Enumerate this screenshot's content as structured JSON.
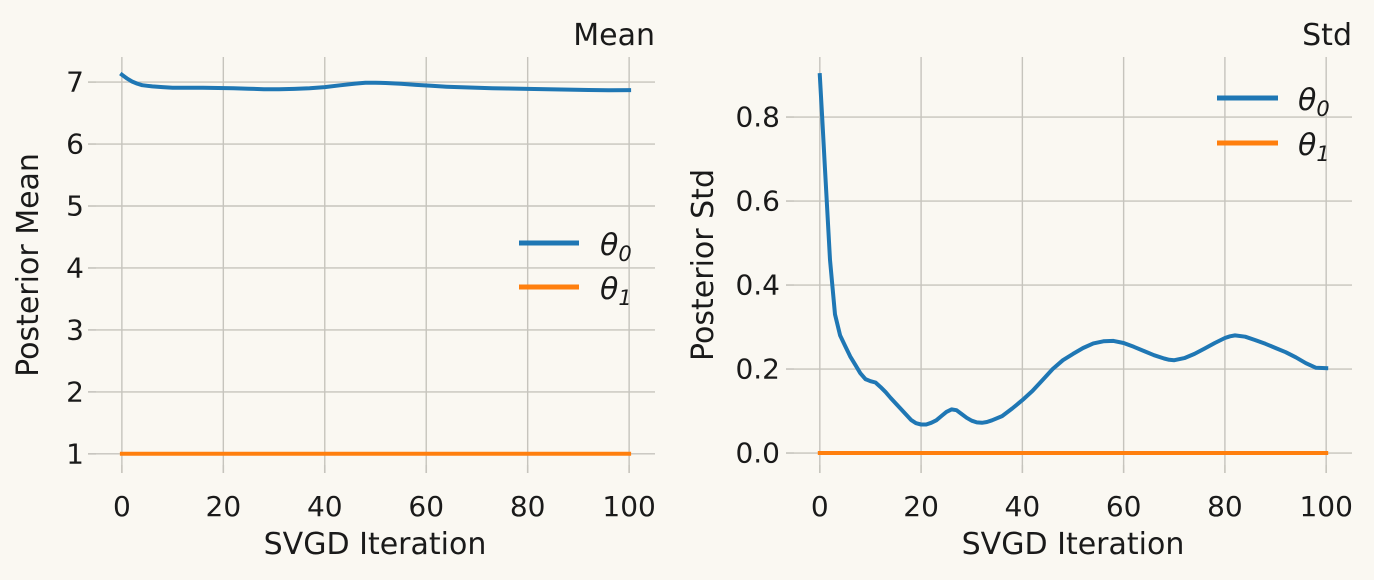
{
  "figure": {
    "background_color": "#faf8f2",
    "grid_color": "#c6c4bd",
    "text_color": "#1a1a1a"
  },
  "chart_data": [
    {
      "type": "line",
      "title": "Mean",
      "xlabel": "SVGD Iteration",
      "ylabel": "Posterior Mean",
      "grid": true,
      "xlim": [
        -5.1,
        105.1
      ],
      "ylim": [
        0.82,
        7.405
      ],
      "xticks": [
        0,
        20,
        40,
        60,
        80,
        100
      ],
      "xtick_labels": [
        "0",
        "20",
        "40",
        "60",
        "80",
        "100"
      ],
      "yticks": [
        1,
        2,
        3,
        4,
        5,
        6,
        7
      ],
      "ytick_labels": [
        "1",
        "2",
        "3",
        "4",
        "5",
        "6",
        "7"
      ],
      "legend_position": "center right",
      "series": [
        {
          "name": "theta0",
          "label_base": "θ",
          "label_sub": "0",
          "color": "#1f77b4",
          "x": [
            0,
            1,
            2,
            3,
            4,
            5,
            6,
            8,
            10,
            13,
            16,
            19,
            22,
            25,
            28,
            31,
            34,
            37,
            40,
            43,
            46,
            48,
            50,
            52,
            55,
            58,
            61,
            64,
            67,
            70,
            73,
            76,
            80,
            84,
            88,
            92,
            96,
            100
          ],
          "y": [
            7.12,
            7.06,
            7.01,
            6.975,
            6.95,
            6.94,
            6.93,
            6.92,
            6.91,
            6.908,
            6.91,
            6.905,
            6.9,
            6.893,
            6.886,
            6.885,
            6.89,
            6.9,
            6.92,
            6.948,
            6.975,
            6.988,
            6.99,
            6.985,
            6.972,
            6.955,
            6.94,
            6.925,
            6.916,
            6.91,
            6.902,
            6.896,
            6.89,
            6.885,
            6.879,
            6.873,
            6.869,
            6.87
          ]
        },
        {
          "name": "theta1",
          "label_base": "θ",
          "label_sub": "1",
          "color": "#ff7f0e",
          "x": [
            0,
            100
          ],
          "y": [
            1.0,
            1.0
          ]
        }
      ]
    },
    {
      "type": "line",
      "title": "Std",
      "xlabel": "SVGD Iteration",
      "ylabel": "Posterior Std",
      "grid": true,
      "xlim": [
        -5.1,
        105.1
      ],
      "ylim": [
        -0.0285,
        0.943
      ],
      "xticks": [
        0,
        20,
        40,
        60,
        80,
        100
      ],
      "xtick_labels": [
        "0",
        "20",
        "40",
        "60",
        "80",
        "100"
      ],
      "yticks": [
        0.0,
        0.2,
        0.4,
        0.6,
        0.8
      ],
      "ytick_labels": [
        "0.0",
        "0.2",
        "0.4",
        "0.6",
        "0.8"
      ],
      "legend_position": "upper right",
      "series": [
        {
          "name": "theta0",
          "label_base": "θ",
          "label_sub": "0",
          "color": "#1f77b4",
          "x": [
            0,
            0.5,
            1,
            2,
            3,
            4,
            5,
            6,
            7,
            8,
            9,
            10,
            11,
            12,
            13,
            14,
            15,
            16,
            17,
            18,
            19,
            20,
            21,
            22,
            23,
            24,
            25,
            26,
            27,
            28,
            29,
            30,
            31,
            32,
            33,
            34,
            36,
            38,
            40,
            42,
            44,
            46,
            48,
            50,
            52,
            54,
            56,
            58,
            60,
            62,
            64,
            66,
            68,
            69,
            70,
            72,
            74,
            76,
            78,
            80,
            81,
            82,
            84,
            86,
            88,
            90,
            92,
            94,
            96,
            98,
            100
          ],
          "y": [
            0.9,
            0.79,
            0.68,
            0.46,
            0.33,
            0.28,
            0.255,
            0.23,
            0.21,
            0.19,
            0.176,
            0.171,
            0.168,
            0.157,
            0.145,
            0.131,
            0.118,
            0.105,
            0.092,
            0.079,
            0.071,
            0.068,
            0.068,
            0.072,
            0.078,
            0.088,
            0.098,
            0.104,
            0.102,
            0.093,
            0.084,
            0.077,
            0.073,
            0.072,
            0.074,
            0.078,
            0.088,
            0.106,
            0.126,
            0.148,
            0.174,
            0.2,
            0.221,
            0.236,
            0.25,
            0.261,
            0.266,
            0.267,
            0.262,
            0.253,
            0.243,
            0.233,
            0.225,
            0.222,
            0.221,
            0.226,
            0.236,
            0.249,
            0.262,
            0.274,
            0.278,
            0.28,
            0.277,
            0.269,
            0.26,
            0.25,
            0.24,
            0.228,
            0.214,
            0.203,
            0.202
          ]
        },
        {
          "name": "theta1",
          "label_base": "θ",
          "label_sub": "1",
          "color": "#ff7f0e",
          "x": [
            0,
            100
          ],
          "y": [
            0.0,
            0.0
          ]
        }
      ]
    }
  ]
}
